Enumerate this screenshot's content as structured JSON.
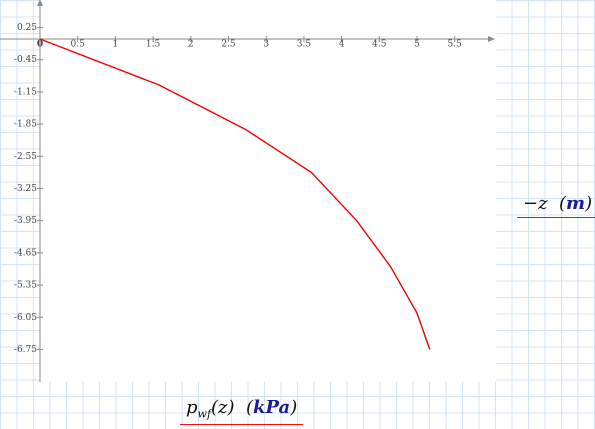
{
  "chart_data": {
    "type": "line",
    "xlim": [
      0,
      6
    ],
    "ylim": [
      -7.4,
      0.35
    ],
    "x_ticks": [
      "0",
      "0.5",
      "1",
      "1.5",
      "2",
      "2.5",
      "3",
      "3.5",
      "4",
      "4.5",
      "5",
      "5.5"
    ],
    "y_ticks": [
      "0.25",
      "-0.45",
      "-1.15",
      "-1.85",
      "-2.55",
      "-3.25",
      "-3.95",
      "-4.65",
      "-5.35",
      "-6.05",
      "-6.75"
    ],
    "series": [
      {
        "color": "#ee0000",
        "x": [
          0,
          1.58,
          2.73,
          3.6,
          4.2,
          4.65,
          5.0,
          5.17
        ],
        "y": [
          0,
          -1.0,
          -1.97,
          -2.9,
          -3.95,
          -4.95,
          -5.96,
          -6.75
        ]
      }
    ],
    "ylabel": "−z  (m)",
    "xlabel": "p_wf(z)  (kPa)"
  },
  "labels": {
    "y_var": "−z",
    "y_unit": "m",
    "x_var": "p",
    "x_sub": "wf",
    "x_arg": "(z)",
    "x_unit": "kPa"
  }
}
